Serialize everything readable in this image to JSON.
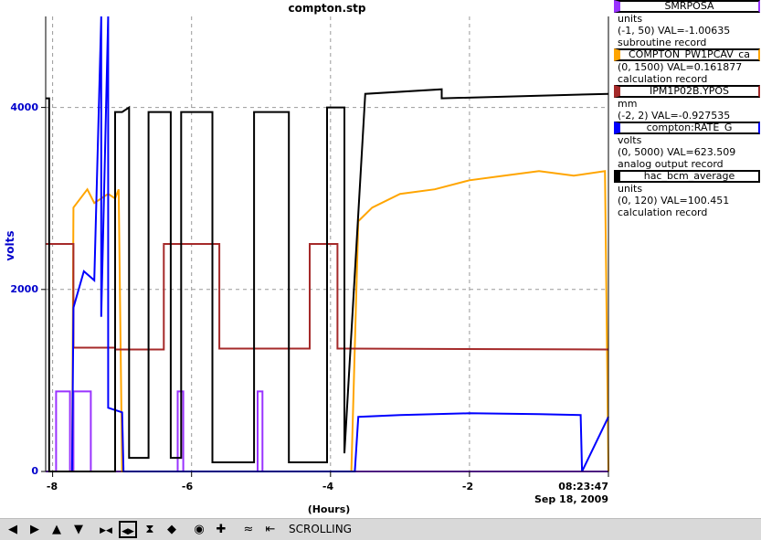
{
  "title": "compton.stp",
  "y_axis": {
    "label": "volts",
    "ticks": [
      "4000",
      "2000",
      "0"
    ],
    "color": "#0000cc"
  },
  "x_axis": {
    "label": "(Hours)",
    "ticks": [
      "-8",
      "-6",
      "-4",
      "-2"
    ],
    "time": "08:23:47",
    "date": "Sep 18, 2009"
  },
  "legend": [
    {
      "name": "SMRPOSA",
      "color": "#9933ff",
      "lines": [
        "units",
        "(-1, 50) VAL=-1.00635",
        "subroutine record"
      ]
    },
    {
      "name": "COMPTON_PW1PCAV_ca",
      "color": "#ffa500",
      "lines": [
        "(0, 1500) VAL=0.161877",
        "calculation record"
      ]
    },
    {
      "name": "IPM1P02B.YPOS",
      "color": "#a52a2a",
      "lines": [
        "mm",
        "(-2, 2) VAL=-0.927535"
      ]
    },
    {
      "name": "compton:RATE_G",
      "color": "#0000ff",
      "lines": [
        "volts",
        "(0, 5000) VAL=623.509",
        "analog output record"
      ]
    },
    {
      "name": "hac_bcm_average",
      "color": "#000000",
      "lines": [
        "units",
        "(0, 120) VAL=100.451",
        "calculation record"
      ]
    }
  ],
  "toolbar": {
    "buttons": [
      {
        "name": "scroll-left-button",
        "icon": "arrow-left-icon",
        "glyph": "◀"
      },
      {
        "name": "scroll-right-button",
        "icon": "arrow-right-icon",
        "glyph": "▶"
      },
      {
        "name": "scroll-up-button",
        "icon": "arrow-up-icon",
        "glyph": "▲"
      },
      {
        "name": "scroll-down-button",
        "icon": "arrow-down-icon",
        "glyph": "▼"
      },
      {
        "name": "zoom-in-x-button",
        "icon": "zoom-in-x-icon",
        "glyph": "▶◀"
      },
      {
        "name": "zoom-out-x-button",
        "icon": "zoom-out-x-icon",
        "glyph": "◀▶",
        "active": true
      },
      {
        "name": "zoom-in-y-button",
        "icon": "zoom-in-y-icon",
        "glyph": "⧗"
      },
      {
        "name": "zoom-out-y-button",
        "icon": "zoom-out-y-icon",
        "glyph": "◆"
      },
      {
        "name": "autoscale-button",
        "icon": "target-icon",
        "glyph": "◉"
      },
      {
        "name": "center-button",
        "icon": "plus-icon",
        "glyph": "✚"
      },
      {
        "name": "waveform-button",
        "icon": "waveform-icon",
        "glyph": "≈"
      },
      {
        "name": "scroll-mode-button",
        "icon": "scroll-mode-icon",
        "glyph": "⇤"
      }
    ],
    "mode": "SCROLLING"
  },
  "chart_data": {
    "type": "line",
    "title": "compton.stp",
    "xlabel": "(Hours)",
    "ylabel": "volts",
    "xlim": [
      -8.1,
      0
    ],
    "ylim": [
      0,
      5000
    ],
    "grid": true,
    "legend_position": "right",
    "series": [
      {
        "name": "SMRPOSA",
        "color": "#9933ff",
        "x": [
          -8.1,
          -7.95,
          -7.95,
          -7.75,
          -7.75,
          -7.7,
          -7.7,
          -7.45,
          -7.45,
          -6.2,
          -6.2,
          -6.12,
          -6.12,
          -5.05,
          -5.05,
          -4.98,
          -4.98,
          0
        ],
        "y": [
          0,
          0,
          880,
          880,
          0,
          0,
          880,
          880,
          0,
          0,
          880,
          880,
          0,
          0,
          880,
          880,
          0,
          0
        ]
      },
      {
        "name": "COMPTON_PW1PCAV_ca",
        "color": "#ffa500",
        "x": [
          -7.72,
          -7.7,
          -7.6,
          -7.5,
          -7.4,
          -7.3,
          -7.2,
          -7.1,
          -7.05,
          -7.0,
          -3.7,
          -3.6,
          -3.4,
          -3.0,
          -2.5,
          -2.0,
          -1.5,
          -1.0,
          -0.5,
          -0.05,
          0
        ],
        "y": [
          0,
          2900,
          3000,
          3100,
          2950,
          3000,
          3050,
          3000,
          3100,
          0,
          0,
          2750,
          2900,
          3050,
          3100,
          3200,
          3250,
          3300,
          3250,
          3300,
          0
        ]
      },
      {
        "name": "IPM1P02B.YPOS",
        "color": "#a52a2a",
        "x": [
          -8.1,
          -7.7,
          -7.7,
          -7.1,
          -7.1,
          -6.4,
          -6.4,
          -5.6,
          -5.6,
          -4.3,
          -4.3,
          -3.9,
          -3.9,
          0
        ],
        "y": [
          2500,
          2500,
          1360,
          1360,
          1340,
          1340,
          2500,
          2500,
          1350,
          1350,
          2500,
          2500,
          1350,
          1340
        ]
      },
      {
        "name": "compton:RATE_G",
        "color": "#0000ff",
        "x": [
          -7.72,
          -7.7,
          -7.55,
          -7.4,
          -7.3,
          -7.3,
          -7.2,
          -7.2,
          -7.0,
          -6.98,
          -3.65,
          -3.6,
          -3.0,
          -2.0,
          -1.0,
          -0.4,
          -0.38,
          0
        ],
        "y": [
          0,
          1800,
          2200,
          2100,
          5000,
          1700,
          5000,
          700,
          650,
          0,
          0,
          600,
          620,
          640,
          630,
          620,
          0,
          600
        ]
      },
      {
        "name": "hac_bcm_average",
        "color": "#000000",
        "x": [
          -8.1,
          -8.05,
          -8.05,
          -7.1,
          -7.1,
          -7.0,
          -6.9,
          -6.9,
          -6.62,
          -6.62,
          -6.3,
          -6.3,
          -6.15,
          -6.15,
          -5.7,
          -5.7,
          -5.1,
          -5.1,
          -4.6,
          -4.6,
          -4.05,
          -4.05,
          -3.8,
          -3.8,
          -3.5,
          -3.5,
          -2.4,
          -2.4,
          0
        ],
        "y": [
          4100,
          4100,
          0,
          0,
          3950,
          3950,
          4000,
          150,
          150,
          3950,
          3950,
          150,
          150,
          3950,
          3950,
          100,
          100,
          3950,
          3950,
          100,
          100,
          4000,
          4000,
          200,
          4150,
          4150,
          4200,
          4100,
          4150
        ]
      }
    ]
  }
}
